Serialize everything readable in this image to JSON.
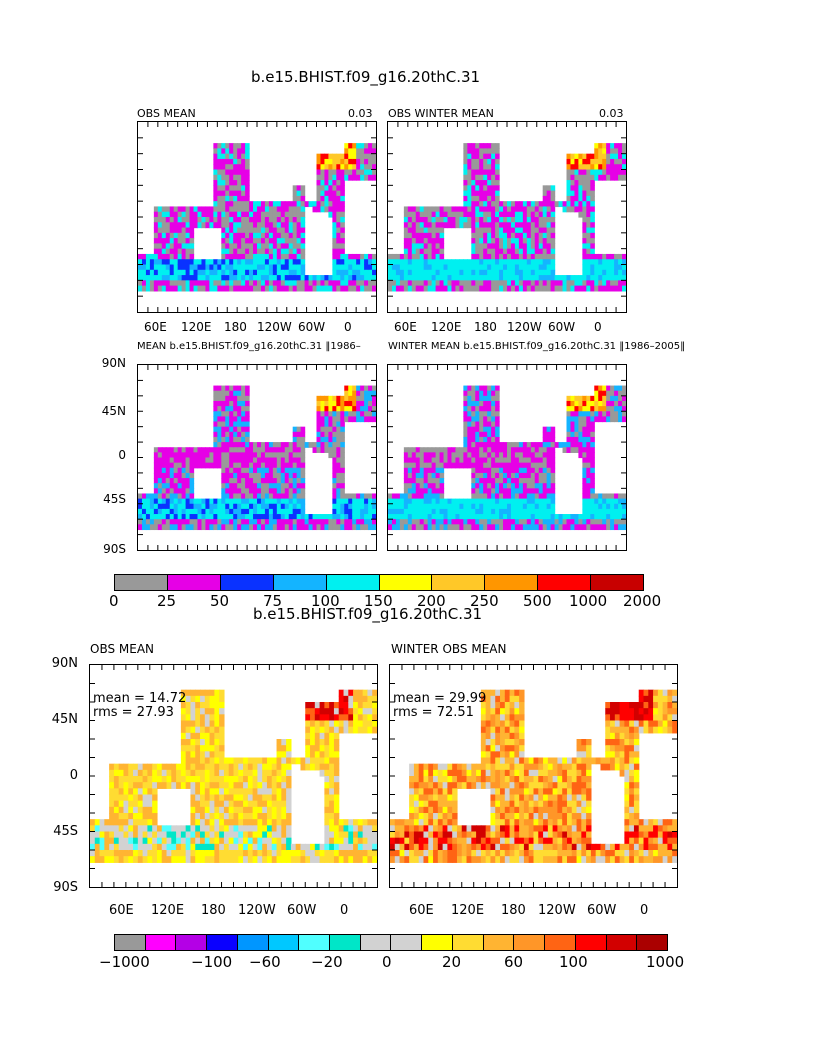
{
  "figure1": {
    "title": "b.e15.BHIST.f09_g16.20thC.31",
    "panels": [
      {
        "left_title": "OBS MEAN",
        "right_title": "0.03",
        "palette": "mld1",
        "variant": 1
      },
      {
        "left_title": "OBS WINTER MEAN",
        "right_title": "0.03",
        "palette": "mld1",
        "variant": 2
      },
      {
        "left_title": "MEAN  b.e15.BHIST.f09_g16.20thC.31  ‖1986–",
        "right_title": "",
        "palette": "mld1",
        "variant": 3
      },
      {
        "left_title": "WINTER MEAN  b.e15.BHIST.f09_g16.20thC.31  ‖1986–2005‖",
        "right_title": "",
        "palette": "mld1",
        "variant": 4
      }
    ],
    "x_ticks": [
      "60E",
      "120E",
      "180",
      "120W",
      "60W",
      "0"
    ],
    "y_ticks": [
      "90N",
      "45N",
      "0",
      "45S",
      "90S"
    ],
    "colorbar": {
      "labels": [
        "0",
        "25",
        "50",
        "75",
        "100",
        "150",
        "200",
        "250",
        "500",
        "1000",
        "2000"
      ],
      "colors": [
        "#999999",
        "#e600e6",
        "#0a32ff",
        "#14b4ff",
        "#00f0f0",
        "#ffff00",
        "#ffc828",
        "#ff9600",
        "#ff0000",
        "#c80000"
      ]
    }
  },
  "figure2": {
    "title": "b.e15.BHIST.f09_g16.20thC.31",
    "panels": [
      {
        "left_title": "OBS MEAN",
        "mean_label": "mean = 14.72",
        "rms_label": "rms = 27.93",
        "palette": "diff",
        "variant": 5
      },
      {
        "left_title": "WINTER OBS MEAN",
        "mean_label": "mean = 29.99",
        "rms_label": "rms = 72.51",
        "palette": "diff",
        "variant": 6
      }
    ],
    "x_ticks": [
      "60E",
      "120E",
      "180",
      "120W",
      "60W",
      "0"
    ],
    "y_ticks": [
      "90N",
      "45N",
      "0",
      "45S",
      "90S"
    ],
    "colorbar": {
      "labels": [
        "−1000",
        "−100",
        "−60",
        "−20",
        "0",
        "20",
        "60",
        "100",
        "1000"
      ],
      "colors": [
        "#999999",
        "#ff00ff",
        "#b400e6",
        "#0a00ff",
        "#0096ff",
        "#00c8ff",
        "#50ffff",
        "#00e6c8",
        "#d2d2d2",
        "#d2d2d2",
        "#ffff00",
        "#ffdc32",
        "#ffb432",
        "#ff9628",
        "#ff6414",
        "#ff0000",
        "#d20000",
        "#aa0000"
      ]
    }
  }
}
